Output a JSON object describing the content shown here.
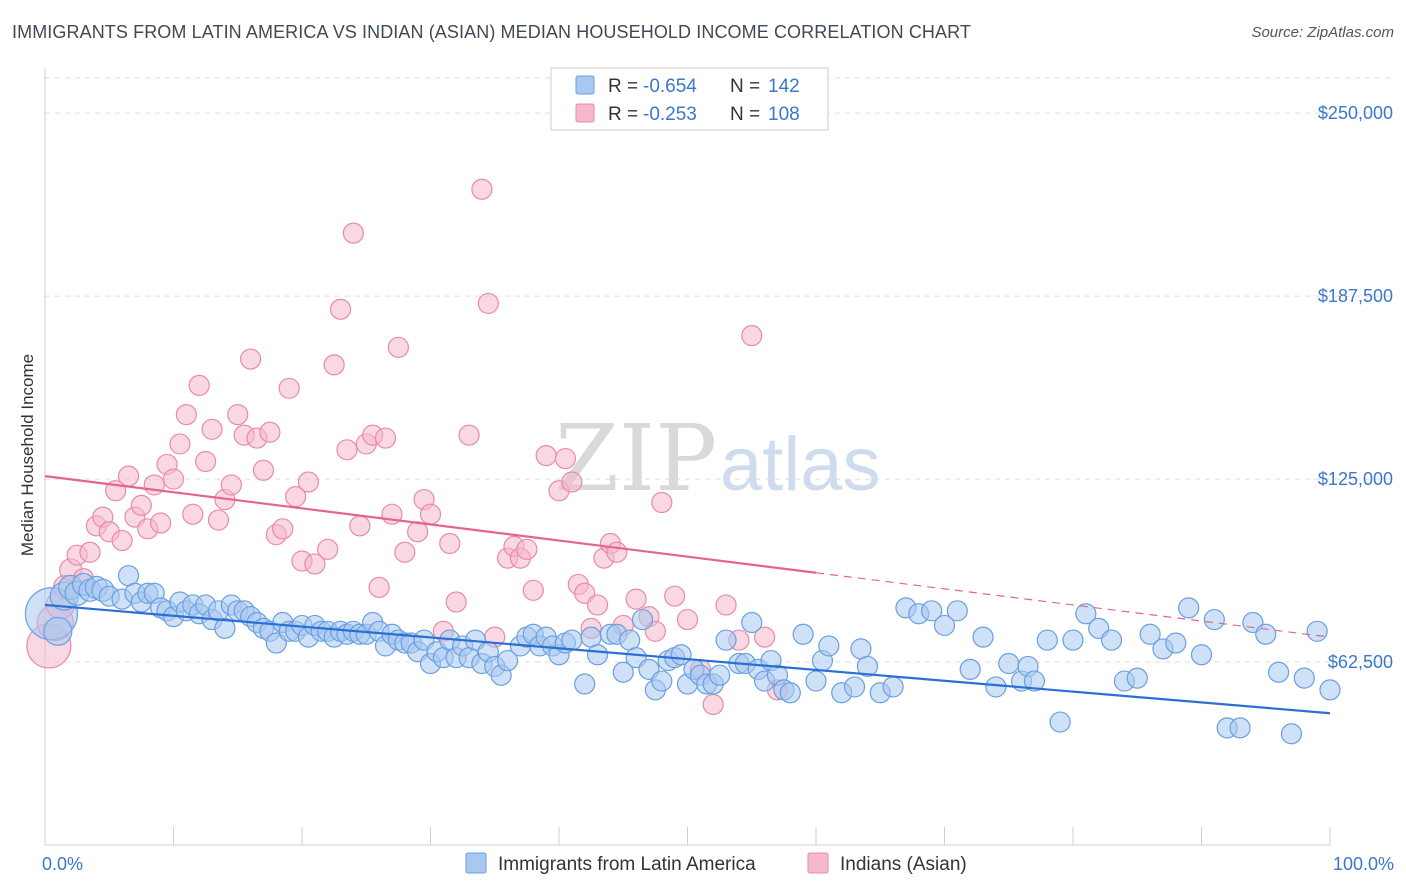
{
  "title": "IMMIGRANTS FROM LATIN AMERICA VS INDIAN (ASIAN) MEDIAN HOUSEHOLD INCOME CORRELATION CHART",
  "source": "Source: ZipAtlas.com",
  "watermark": {
    "zip": "ZIP",
    "atlas": "atlas"
  },
  "colors": {
    "blue_fill": "#a8c8f0",
    "blue_stroke": "#6a9fe0",
    "blue_line": "#2a6fd4",
    "pink_fill": "#f6b8cc",
    "pink_stroke": "#e98aa8",
    "pink_line": "#e5648f",
    "axis_label": "#3b78c9",
    "grid": "#dedede"
  },
  "legend": {
    "rows": [
      {
        "r_label": "R = ",
        "r_value": "-0.654",
        "n_label": "N = ",
        "n_value": "142"
      },
      {
        "r_label": "R = ",
        "r_value": "-0.253",
        "n_label": "N = ",
        "n_value": "108"
      }
    ]
  },
  "chart_data": {
    "type": "scatter",
    "xlabel": "",
    "ylabel": "Median Household Income",
    "x_tick_labels": [
      "0.0%",
      "100.0%"
    ],
    "y_tick_labels": [
      "$62,500",
      "$125,000",
      "$187,500",
      "$250,000"
    ],
    "y_ticks": [
      62500,
      125000,
      187500,
      250000
    ],
    "xlim": [
      0,
      100
    ],
    "ylim": [
      0,
      262000
    ],
    "grid": true,
    "legend_position": "top-center",
    "series": [
      {
        "name": "Immigrants from Latin America",
        "color": "blue",
        "trend": {
          "x": [
            0,
            100
          ],
          "y": [
            82000,
            45000
          ],
          "dashed_from": null
        },
        "points": [
          [
            0.5,
            79000,
            26
          ],
          [
            1,
            73000,
            14
          ],
          [
            1.5,
            85000,
            14
          ],
          [
            2,
            88000,
            12
          ],
          [
            2.5,
            86000,
            12
          ],
          [
            3,
            89000,
            11
          ],
          [
            3.5,
            87000,
            11
          ],
          [
            4,
            88000,
            11
          ],
          [
            4.5,
            87000,
            11
          ],
          [
            5,
            85000,
            10
          ],
          [
            6,
            84000,
            10
          ],
          [
            6.5,
            92000,
            10
          ],
          [
            7,
            86000,
            10
          ],
          [
            7.5,
            83000,
            10
          ],
          [
            8,
            86000,
            10
          ],
          [
            8.5,
            86000,
            10
          ],
          [
            9,
            81000,
            10
          ],
          [
            9.5,
            80000,
            10
          ],
          [
            10,
            78000,
            10
          ],
          [
            10.5,
            83000,
            10
          ],
          [
            11,
            80000,
            10
          ],
          [
            11.5,
            82000,
            10
          ],
          [
            12,
            79000,
            10
          ],
          [
            12.5,
            82000,
            10
          ],
          [
            13,
            77000,
            10
          ],
          [
            13.5,
            80000,
            10
          ],
          [
            14,
            74000,
            10
          ],
          [
            14.5,
            82000,
            10
          ],
          [
            15,
            80000,
            10
          ],
          [
            15.5,
            80000,
            10
          ],
          [
            16,
            78000,
            10
          ],
          [
            16.5,
            76000,
            10
          ],
          [
            17,
            74000,
            10
          ],
          [
            17.5,
            73000,
            10
          ],
          [
            18,
            69000,
            10
          ],
          [
            18.5,
            76000,
            10
          ],
          [
            19,
            73000,
            10
          ],
          [
            19.5,
            73000,
            10
          ],
          [
            20,
            75000,
            10
          ],
          [
            20.5,
            71000,
            10
          ],
          [
            21,
            75000,
            10
          ],
          [
            21.5,
            73000,
            10
          ],
          [
            22,
            73000,
            10
          ],
          [
            22.5,
            71000,
            10
          ],
          [
            23,
            73000,
            10
          ],
          [
            23.5,
            72000,
            10
          ],
          [
            24,
            73000,
            10
          ],
          [
            24.5,
            72000,
            10
          ],
          [
            25,
            72000,
            10
          ],
          [
            25.5,
            76000,
            10
          ],
          [
            26,
            73000,
            10
          ],
          [
            26.5,
            68000,
            10
          ],
          [
            27,
            72000,
            10
          ],
          [
            27.5,
            70000,
            10
          ],
          [
            28,
            69000,
            10
          ],
          [
            28.5,
            69000,
            10
          ],
          [
            29,
            66000,
            10
          ],
          [
            29.5,
            70000,
            10
          ],
          [
            30,
            62000,
            10
          ],
          [
            30.5,
            66000,
            10
          ],
          [
            31,
            64000,
            10
          ],
          [
            31.5,
            70000,
            10
          ],
          [
            32,
            64000,
            10
          ],
          [
            32.5,
            68000,
            10
          ],
          [
            33,
            64000,
            10
          ],
          [
            33.5,
            70000,
            10
          ],
          [
            34,
            62000,
            10
          ],
          [
            34.5,
            66000,
            10
          ],
          [
            35,
            61000,
            10
          ],
          [
            35.5,
            58000,
            10
          ],
          [
            36,
            63000,
            10
          ],
          [
            37,
            68000,
            10
          ],
          [
            37.5,
            71000,
            10
          ],
          [
            38,
            72000,
            10
          ],
          [
            38.5,
            68000,
            10
          ],
          [
            39,
            71000,
            10
          ],
          [
            39.5,
            68000,
            10
          ],
          [
            40,
            65000,
            10
          ],
          [
            40.5,
            69000,
            10
          ],
          [
            41,
            70000,
            10
          ],
          [
            42,
            55000,
            10
          ],
          [
            42.5,
            71000,
            10
          ],
          [
            43,
            65000,
            10
          ],
          [
            44,
            72000,
            10
          ],
          [
            44.5,
            72000,
            10
          ],
          [
            45,
            59000,
            10
          ],
          [
            45.5,
            70000,
            10
          ],
          [
            46,
            64000,
            10
          ],
          [
            46.5,
            77000,
            10
          ],
          [
            47,
            60000,
            10
          ],
          [
            47.5,
            53000,
            10
          ],
          [
            48,
            56000,
            10
          ],
          [
            48.5,
            63000,
            10
          ],
          [
            49,
            64000,
            10
          ],
          [
            49.5,
            65000,
            10
          ],
          [
            50,
            55000,
            10
          ],
          [
            50.5,
            60000,
            10
          ],
          [
            51,
            58000,
            10
          ],
          [
            51.5,
            55000,
            10
          ],
          [
            52,
            55000,
            10
          ],
          [
            52.5,
            58000,
            10
          ],
          [
            53,
            70000,
            10
          ],
          [
            54,
            62000,
            10
          ],
          [
            54.5,
            62000,
            10
          ],
          [
            55,
            76000,
            10
          ],
          [
            55.5,
            60000,
            10
          ],
          [
            56,
            56000,
            10
          ],
          [
            56.5,
            63000,
            10
          ],
          [
            57,
            58000,
            10
          ],
          [
            57.5,
            53000,
            10
          ],
          [
            58,
            52000,
            10
          ],
          [
            59,
            72000,
            10
          ],
          [
            60,
            56000,
            10
          ],
          [
            60.5,
            63000,
            10
          ],
          [
            61,
            68000,
            10
          ],
          [
            62,
            52000,
            10
          ],
          [
            63,
            54000,
            10
          ],
          [
            63.5,
            67000,
            10
          ],
          [
            64,
            61000,
            10
          ],
          [
            65,
            52000,
            10
          ],
          [
            66,
            54000,
            10
          ],
          [
            67,
            81000,
            10
          ],
          [
            68,
            79000,
            10
          ],
          [
            69,
            80000,
            10
          ],
          [
            70,
            75000,
            10
          ],
          [
            71,
            80000,
            10
          ],
          [
            72,
            60000,
            10
          ],
          [
            73,
            71000,
            10
          ],
          [
            74,
            54000,
            10
          ],
          [
            75,
            62000,
            10
          ],
          [
            76,
            56000,
            10
          ],
          [
            76.5,
            61000,
            10
          ],
          [
            77,
            56000,
            10
          ],
          [
            78,
            70000,
            10
          ],
          [
            79,
            42000,
            10
          ],
          [
            80,
            70000,
            10
          ],
          [
            81,
            79000,
            10
          ],
          [
            82,
            74000,
            10
          ],
          [
            83,
            70000,
            10
          ],
          [
            84,
            56000,
            10
          ],
          [
            85,
            57000,
            10
          ],
          [
            86,
            72000,
            10
          ],
          [
            87,
            67000,
            10
          ],
          [
            88,
            69000,
            10
          ],
          [
            89,
            81000,
            10
          ],
          [
            90,
            65000,
            10
          ],
          [
            91,
            77000,
            10
          ],
          [
            92,
            40000,
            10
          ],
          [
            93,
            40000,
            10
          ],
          [
            94,
            76000,
            10
          ],
          [
            95,
            72000,
            10
          ],
          [
            96,
            59000,
            10
          ],
          [
            97,
            38000,
            10
          ],
          [
            98,
            57000,
            10
          ],
          [
            99,
            73000,
            10
          ],
          [
            100,
            53000,
            10
          ]
        ]
      },
      {
        "name": "Indians (Asian)",
        "color": "pink",
        "trend": {
          "x": [
            0,
            100
          ],
          "y": [
            126000,
            71000
          ],
          "dashed_from": 60
        }
      }
    ]
  }
}
